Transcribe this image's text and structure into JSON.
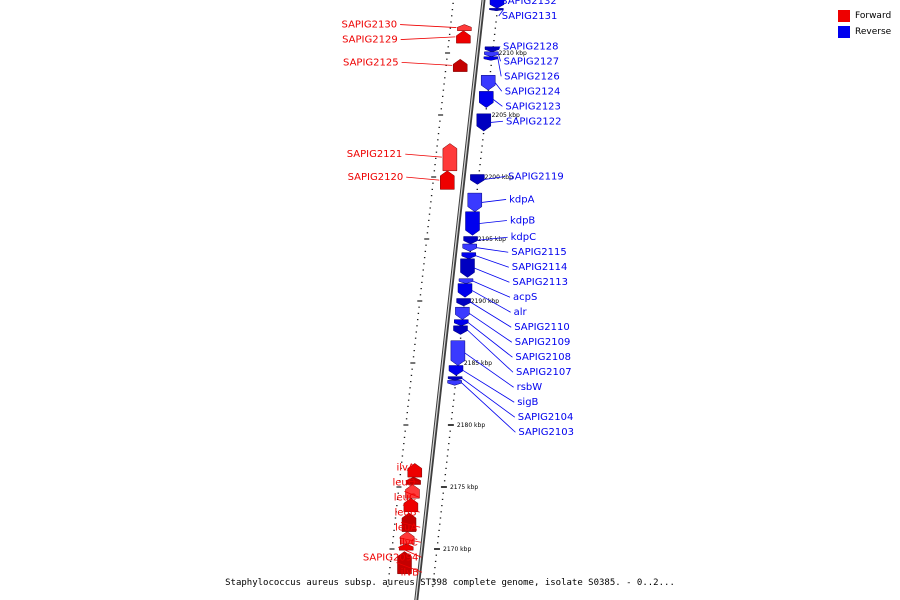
{
  "caption": "Staphylococcus aureus subsp. aureus ST398 complete genome, isolate S0385. - 0..2...",
  "legend": [
    {
      "label": "Forward",
      "color": "#ee0000"
    },
    {
      "label": "Reverse",
      "color": "#0000ee"
    }
  ],
  "ruler": {
    "unit": "kbp",
    "ticks": [
      2170,
      2175,
      2180,
      2185,
      2190,
      2195,
      2200,
      2205,
      2210
    ]
  },
  "genes": [
    {
      "name": "SAPIG2132",
      "strand": "reverse",
      "start": 2213.6,
      "end": 2214.3
    },
    {
      "name": "SAPIG2131",
      "strand": "reverse",
      "start": 2213.4,
      "end": 2213.6
    },
    {
      "name": "SAPIG2130",
      "strand": "forward",
      "start": 2211.8,
      "end": 2212.3
    },
    {
      "name": "SAPIG2129",
      "strand": "forward",
      "start": 2210.8,
      "end": 2211.8
    },
    {
      "name": "SAPIG2128",
      "strand": "reverse",
      "start": 2210.1,
      "end": 2210.5
    },
    {
      "name": "SAPIG2127",
      "strand": "reverse",
      "start": 2209.7,
      "end": 2210.1
    },
    {
      "name": "SAPIG2126",
      "strand": "reverse",
      "start": 2209.4,
      "end": 2209.7
    },
    {
      "name": "SAPIG2125",
      "strand": "forward",
      "start": 2208.5,
      "end": 2209.5
    },
    {
      "name": "SAPIG2124",
      "strand": "reverse",
      "start": 2207.0,
      "end": 2208.2
    },
    {
      "name": "SAPIG2123",
      "strand": "reverse",
      "start": 2205.6,
      "end": 2206.9
    },
    {
      "name": "SAPIG2122",
      "strand": "reverse",
      "start": 2203.7,
      "end": 2205.1
    },
    {
      "name": "SAPIG2121",
      "strand": "forward",
      "start": 2200.5,
      "end": 2202.7
    },
    {
      "name": "SAPIG2120",
      "strand": "forward",
      "start": 2199.0,
      "end": 2200.5
    },
    {
      "name": "SAPIG2119",
      "strand": "reverse",
      "start": 2199.4,
      "end": 2200.2
    },
    {
      "name": "kdpA",
      "strand": "reverse",
      "start": 2197.2,
      "end": 2198.7
    },
    {
      "name": "kdpB",
      "strand": "reverse",
      "start": 2195.3,
      "end": 2197.2
    },
    {
      "name": "kdpC",
      "strand": "reverse",
      "start": 2194.6,
      "end": 2195.2
    },
    {
      "name": "SAPIG2115",
      "strand": "reverse",
      "start": 2194.0,
      "end": 2194.6
    },
    {
      "name": "SAPIG2114",
      "strand": "reverse",
      "start": 2193.4,
      "end": 2193.9
    },
    {
      "name": "SAPIG2113",
      "strand": "reverse",
      "start": 2191.9,
      "end": 2193.4
    },
    {
      "name": "acpS",
      "strand": "reverse",
      "start": 2191.4,
      "end": 2191.8
    },
    {
      "name": "alr",
      "strand": "reverse",
      "start": 2190.3,
      "end": 2191.4
    },
    {
      "name": "SAPIG2110",
      "strand": "reverse",
      "start": 2189.6,
      "end": 2190.2
    },
    {
      "name": "SAPIG2109",
      "strand": "reverse",
      "start": 2188.5,
      "end": 2189.5
    },
    {
      "name": "SAPIG2108",
      "strand": "reverse",
      "start": 2188.0,
      "end": 2188.5
    },
    {
      "name": "SAPIG2107",
      "strand": "reverse",
      "start": 2187.3,
      "end": 2188.0
    },
    {
      "name": "rsbW",
      "strand": "reverse",
      "start": 2184.8,
      "end": 2186.8
    },
    {
      "name": "sigB",
      "strand": "reverse",
      "start": 2184.0,
      "end": 2184.8
    },
    {
      "name": "SAPIG2104",
      "strand": "reverse",
      "start": 2183.6,
      "end": 2183.9
    },
    {
      "name": "SAPIG2103",
      "strand": "reverse",
      "start": 2183.2,
      "end": 2183.6
    },
    {
      "name": "ilvA",
      "strand": "forward",
      "start": 2175.8,
      "end": 2176.9
    },
    {
      "name": "leuD",
      "strand": "forward",
      "start": 2175.2,
      "end": 2175.8
    },
    {
      "name": "leuC",
      "strand": "forward",
      "start": 2174.1,
      "end": 2175.2
    },
    {
      "name": "leuB",
      "strand": "forward",
      "start": 2173.0,
      "end": 2174.1
    },
    {
      "name": "leuA",
      "strand": "forward",
      "start": 2171.4,
      "end": 2172.9
    },
    {
      "name": "ilvC",
      "strand": "forward",
      "start": 2170.4,
      "end": 2171.4
    },
    {
      "name": "SAPIG2094",
      "strand": "forward",
      "start": 2169.9,
      "end": 2170.4
    },
    {
      "name": "ilvB",
      "strand": "forward",
      "start": 2168.0,
      "end": 2169.8
    }
  ]
}
